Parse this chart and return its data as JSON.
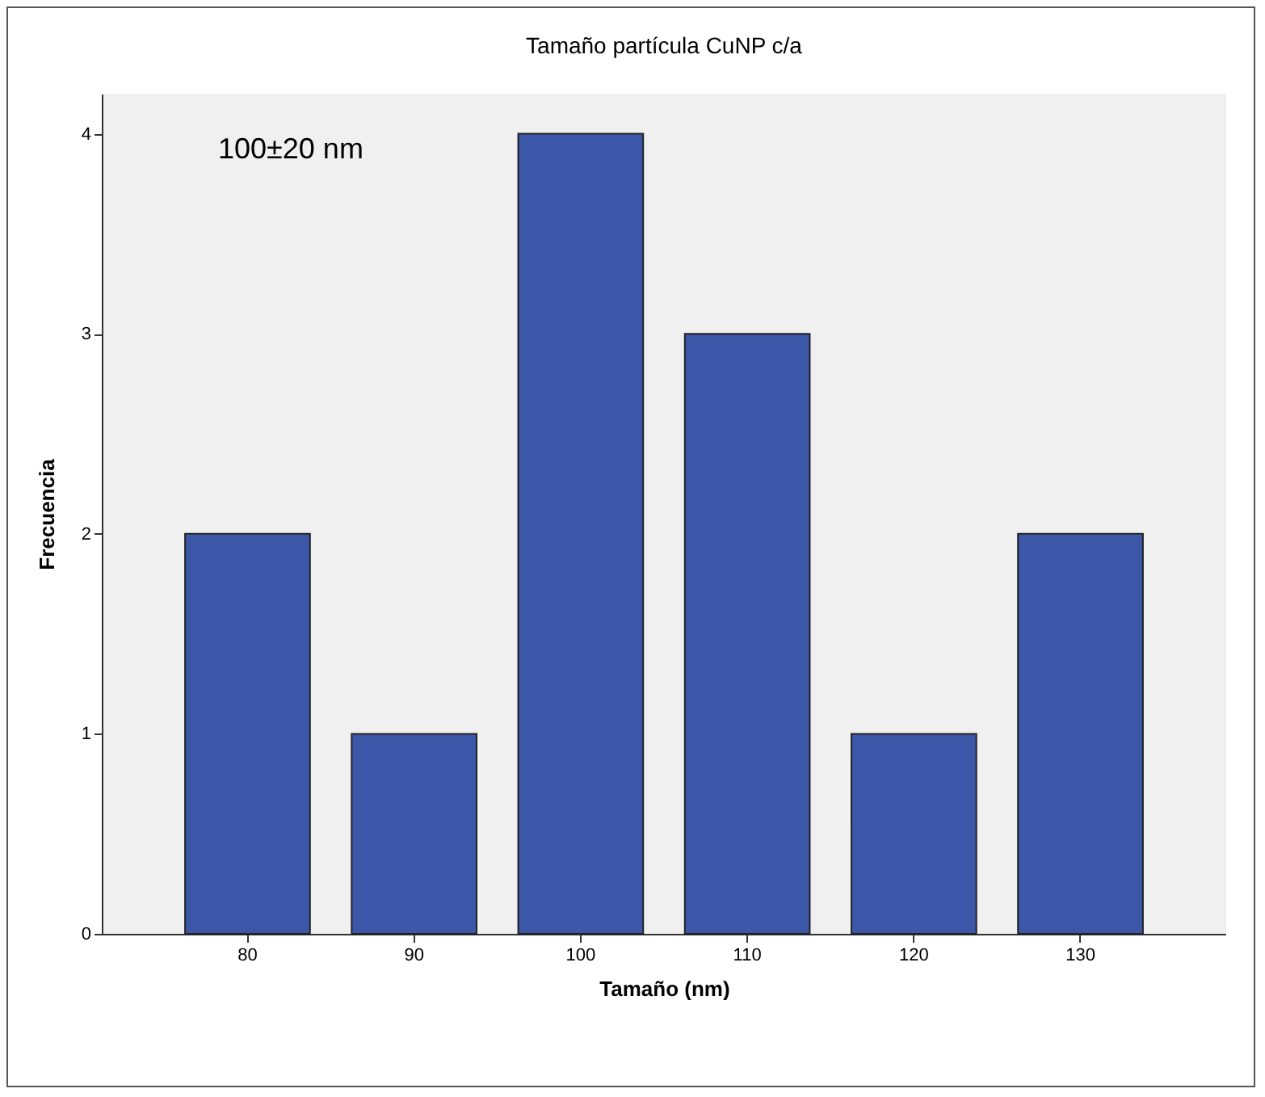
{
  "chart_data": {
    "type": "bar",
    "title": "Tamaño partícula CuNP c/a",
    "xlabel": "Tamaño (nm)",
    "ylabel": "Frecuencia",
    "categories": [
      "80",
      "90",
      "100",
      "110",
      "120",
      "130"
    ],
    "values": [
      2,
      1,
      4,
      3,
      1,
      2
    ],
    "color": "#3c56a8",
    "ylim": [
      0,
      4.2
    ],
    "yticks": [
      0,
      1,
      2,
      3,
      4
    ],
    "annotations": [
      "100±20 nm"
    ],
    "grid": false
  }
}
